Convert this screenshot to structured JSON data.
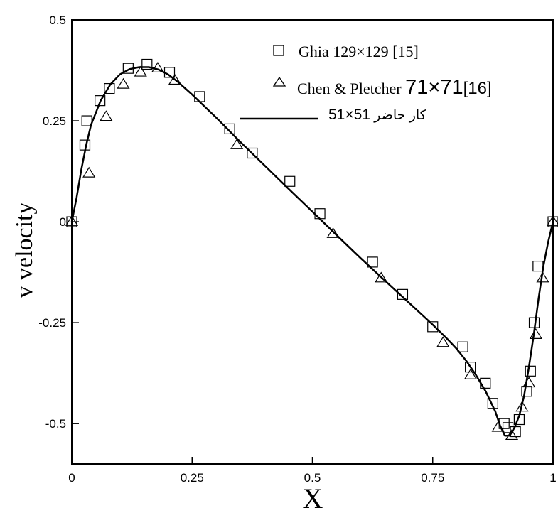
{
  "chart_data": {
    "type": "scatter",
    "xlabel": "X",
    "ylabel": "v velocity",
    "xlim": [
      0,
      1
    ],
    "ylim": [
      -0.6,
      0.5
    ],
    "x_ticks": [
      "0",
      "0.25",
      "0.5",
      "0.75",
      "1"
    ],
    "y_ticks": [
      "0.5",
      "0.25",
      "0",
      "-0.25",
      "-0.5"
    ],
    "grid": false,
    "legend_position": "top-right",
    "legend": {
      "ghia_name": "Ghia",
      "ghia_grid": "129×129",
      "ghia_ref": "[15]",
      "chen_name": "Chen & Pletcher",
      "chen_grid": "71×71",
      "chen_ref": "[16]",
      "present_grid": "51×51",
      "present_label": "کار حاضر"
    },
    "series": [
      {
        "key": "ghia",
        "marker": "square",
        "points": [
          [
            0.0,
            0.0
          ],
          [
            0.0273,
            0.19
          ],
          [
            0.0313,
            0.25
          ],
          [
            0.0586,
            0.3
          ],
          [
            0.0781,
            0.33
          ],
          [
            0.1172,
            0.38
          ],
          [
            0.1563,
            0.39
          ],
          [
            0.2031,
            0.37
          ],
          [
            0.2656,
            0.31
          ],
          [
            0.3281,
            0.23
          ],
          [
            0.375,
            0.17
          ],
          [
            0.4531,
            0.1
          ],
          [
            0.5156,
            0.02
          ],
          [
            0.625,
            -0.1
          ],
          [
            0.6875,
            -0.18
          ],
          [
            0.75,
            -0.26
          ],
          [
            0.8125,
            -0.31
          ],
          [
            0.8281,
            -0.36
          ],
          [
            0.8594,
            -0.4
          ],
          [
            0.875,
            -0.45
          ],
          [
            0.8984,
            -0.5
          ],
          [
            0.9063,
            -0.51
          ],
          [
            0.9219,
            -0.52
          ],
          [
            0.9297,
            -0.49
          ],
          [
            0.9453,
            -0.42
          ],
          [
            0.9531,
            -0.37
          ],
          [
            0.9609,
            -0.25
          ],
          [
            0.9688,
            -0.11
          ],
          [
            1.0,
            0.0
          ]
        ]
      },
      {
        "key": "chen",
        "marker": "triangle",
        "points": [
          [
            0.0,
            0.0
          ],
          [
            0.0357,
            0.12
          ],
          [
            0.0714,
            0.26
          ],
          [
            0.1071,
            0.34
          ],
          [
            0.1429,
            0.37
          ],
          [
            0.1786,
            0.38
          ],
          [
            0.2143,
            0.35
          ],
          [
            0.3429,
            0.19
          ],
          [
            0.5429,
            -0.03
          ],
          [
            0.6429,
            -0.14
          ],
          [
            0.7714,
            -0.3
          ],
          [
            0.8286,
            -0.38
          ],
          [
            0.8857,
            -0.51
          ],
          [
            0.9143,
            -0.53
          ],
          [
            0.9357,
            -0.46
          ],
          [
            0.95,
            -0.4
          ],
          [
            0.9643,
            -0.28
          ],
          [
            0.9786,
            -0.14
          ],
          [
            1.0,
            0.0
          ]
        ]
      },
      {
        "key": "present",
        "marker": "line",
        "points": [
          [
            0.0,
            0.0
          ],
          [
            0.01,
            0.06
          ],
          [
            0.02,
            0.13
          ],
          [
            0.03,
            0.19
          ],
          [
            0.04,
            0.24
          ],
          [
            0.06,
            0.3
          ],
          [
            0.08,
            0.34
          ],
          [
            0.1,
            0.365
          ],
          [
            0.12,
            0.378
          ],
          [
            0.14,
            0.383
          ],
          [
            0.16,
            0.383
          ],
          [
            0.18,
            0.377
          ],
          [
            0.2,
            0.365
          ],
          [
            0.22,
            0.347
          ],
          [
            0.25,
            0.315
          ],
          [
            0.3,
            0.258
          ],
          [
            0.35,
            0.198
          ],
          [
            0.4,
            0.14
          ],
          [
            0.45,
            0.082
          ],
          [
            0.5,
            0.025
          ],
          [
            0.55,
            -0.033
          ],
          [
            0.6,
            -0.09
          ],
          [
            0.65,
            -0.145
          ],
          [
            0.7,
            -0.2
          ],
          [
            0.75,
            -0.255
          ],
          [
            0.78,
            -0.29
          ],
          [
            0.8,
            -0.315
          ],
          [
            0.82,
            -0.345
          ],
          [
            0.84,
            -0.38
          ],
          [
            0.86,
            -0.42
          ],
          [
            0.88,
            -0.47
          ],
          [
            0.89,
            -0.505
          ],
          [
            0.9,
            -0.53
          ],
          [
            0.91,
            -0.53
          ],
          [
            0.92,
            -0.51
          ],
          [
            0.93,
            -0.48
          ],
          [
            0.94,
            -0.43
          ],
          [
            0.95,
            -0.36
          ],
          [
            0.96,
            -0.28
          ],
          [
            0.97,
            -0.19
          ],
          [
            0.98,
            -0.11
          ],
          [
            0.99,
            -0.05
          ],
          [
            1.0,
            0.0
          ]
        ]
      }
    ]
  }
}
